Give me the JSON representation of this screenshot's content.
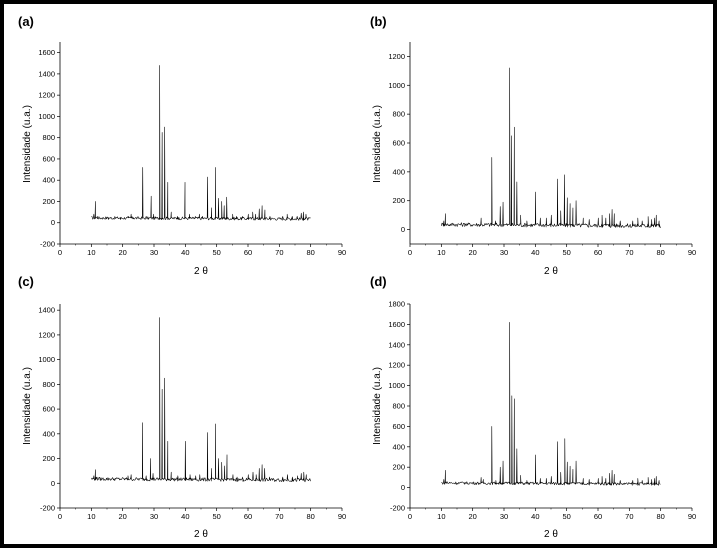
{
  "chart_data": [
    {
      "panel": "(a)",
      "type": "line",
      "xlabel": "2 θ",
      "ylabel": "Intensidade (u.a.)",
      "xlim": [
        0,
        90
      ],
      "ylim": [
        -200,
        1700
      ],
      "xticks": [
        0,
        10,
        20,
        30,
        40,
        50,
        60,
        70,
        80,
        90
      ],
      "yticks": [
        -200,
        0,
        200,
        400,
        600,
        800,
        1000,
        1200,
        1400,
        1600
      ],
      "grid": false,
      "baseline": 40,
      "x_range": [
        10,
        80
      ],
      "peaks": [
        [
          10.8,
          80
        ],
        [
          11.3,
          200
        ],
        [
          11.9,
          60
        ],
        [
          15.5,
          30
        ],
        [
          17.8,
          40
        ],
        [
          19.3,
          30
        ],
        [
          21.8,
          60
        ],
        [
          22.7,
          80
        ],
        [
          23.3,
          50
        ],
        [
          26.4,
          520
        ],
        [
          27.5,
          60
        ],
        [
          29.1,
          250
        ],
        [
          29.8,
          80
        ],
        [
          31.8,
          1480
        ],
        [
          32.6,
          850
        ],
        [
          33.4,
          900
        ],
        [
          34.4,
          380
        ],
        [
          35.5,
          100
        ],
        [
          37.5,
          60
        ],
        [
          39.9,
          380
        ],
        [
          41.3,
          80
        ],
        [
          43.2,
          60
        ],
        [
          44.5,
          80
        ],
        [
          45.5,
          60
        ],
        [
          47.1,
          430
        ],
        [
          48.3,
          140
        ],
        [
          49.6,
          520
        ],
        [
          50.6,
          230
        ],
        [
          51.6,
          200
        ],
        [
          52.4,
          160
        ],
        [
          53.2,
          240
        ],
        [
          55.1,
          80
        ],
        [
          56.4,
          60
        ],
        [
          58.2,
          60
        ],
        [
          60.1,
          80
        ],
        [
          61.5,
          100
        ],
        [
          62.4,
          80
        ],
        [
          63.6,
          130
        ],
        [
          64.5,
          160
        ],
        [
          65.4,
          120
        ],
        [
          67.0,
          60
        ],
        [
          71.1,
          60
        ],
        [
          72.5,
          80
        ],
        [
          74.1,
          60
        ],
        [
          75.7,
          60
        ],
        [
          77.0,
          90
        ],
        [
          77.7,
          100
        ],
        [
          78.5,
          80
        ]
      ]
    },
    {
      "panel": "(b)",
      "type": "line",
      "xlabel": "2 θ",
      "ylabel": "Intensidade (u.a.)",
      "xlim": [
        0,
        90
      ],
      "ylim": [
        -100,
        1300
      ],
      "xticks": [
        0,
        10,
        20,
        30,
        40,
        50,
        60,
        70,
        80,
        90
      ],
      "yticks": [
        0,
        200,
        400,
        600,
        800,
        1000,
        1200
      ],
      "grid": false,
      "baseline": 30,
      "x_range": [
        10,
        80
      ],
      "peaks": [
        [
          10.8,
          60
        ],
        [
          11.3,
          110
        ],
        [
          17.6,
          40
        ],
        [
          22.7,
          80
        ],
        [
          26.1,
          500
        ],
        [
          27.3,
          60
        ],
        [
          28.8,
          160
        ],
        [
          29.7,
          190
        ],
        [
          31.8,
          1120
        ],
        [
          32.4,
          650
        ],
        [
          33.3,
          710
        ],
        [
          34.1,
          330
        ],
        [
          35.3,
          100
        ],
        [
          37.3,
          60
        ],
        [
          40.1,
          260
        ],
        [
          41.6,
          80
        ],
        [
          43.5,
          80
        ],
        [
          45.1,
          100
        ],
        [
          47.1,
          350
        ],
        [
          48.1,
          130
        ],
        [
          49.3,
          380
        ],
        [
          50.2,
          220
        ],
        [
          51.1,
          180
        ],
        [
          52.0,
          150
        ],
        [
          53.0,
          200
        ],
        [
          55.3,
          80
        ],
        [
          57.2,
          70
        ],
        [
          60.1,
          80
        ],
        [
          61.3,
          100
        ],
        [
          62.5,
          80
        ],
        [
          63.7,
          110
        ],
        [
          64.5,
          140
        ],
        [
          65.2,
          110
        ],
        [
          67.1,
          60
        ],
        [
          71.1,
          60
        ],
        [
          72.7,
          80
        ],
        [
          74.1,
          60
        ],
        [
          76.0,
          90
        ],
        [
          77.1,
          70
        ],
        [
          78.0,
          80
        ],
        [
          78.6,
          100
        ],
        [
          79.5,
          60
        ]
      ]
    },
    {
      "panel": "(c)",
      "type": "line",
      "xlabel": "2 θ",
      "ylabel": "Intensidade (u.a.)",
      "xlim": [
        0,
        90
      ],
      "ylim": [
        -200,
        1450
      ],
      "xticks": [
        0,
        10,
        20,
        30,
        40,
        50,
        60,
        70,
        80,
        90
      ],
      "yticks": [
        -200,
        0,
        200,
        400,
        600,
        800,
        1000,
        1200,
        1400
      ],
      "grid": false,
      "baseline": 30,
      "x_range": [
        10,
        80
      ],
      "peaks": [
        [
          10.8,
          60
        ],
        [
          11.3,
          110
        ],
        [
          11.8,
          50
        ],
        [
          15.6,
          30
        ],
        [
          17.8,
          40
        ],
        [
          21.7,
          60
        ],
        [
          22.7,
          70
        ],
        [
          26.3,
          490
        ],
        [
          27.5,
          60
        ],
        [
          28.9,
          200
        ],
        [
          29.7,
          80
        ],
        [
          31.8,
          1340
        ],
        [
          32.6,
          760
        ],
        [
          33.4,
          850
        ],
        [
          34.4,
          340
        ],
        [
          35.5,
          90
        ],
        [
          37.6,
          60
        ],
        [
          40.0,
          340
        ],
        [
          41.5,
          70
        ],
        [
          43.3,
          60
        ],
        [
          44.6,
          70
        ],
        [
          47.1,
          410
        ],
        [
          48.3,
          120
        ],
        [
          49.6,
          480
        ],
        [
          50.6,
          200
        ],
        [
          51.6,
          170
        ],
        [
          52.5,
          140
        ],
        [
          53.3,
          230
        ],
        [
          55.2,
          70
        ],
        [
          56.5,
          50
        ],
        [
          58.3,
          50
        ],
        [
          60.1,
          70
        ],
        [
          61.6,
          90
        ],
        [
          62.6,
          70
        ],
        [
          63.6,
          120
        ],
        [
          64.5,
          150
        ],
        [
          65.3,
          120
        ],
        [
          66.9,
          50
        ],
        [
          71.1,
          50
        ],
        [
          72.6,
          70
        ],
        [
          74.2,
          50
        ],
        [
          75.8,
          60
        ],
        [
          77.0,
          80
        ],
        [
          77.8,
          90
        ],
        [
          78.6,
          70
        ]
      ]
    },
    {
      "panel": "(d)",
      "type": "line",
      "xlabel": "2 θ",
      "ylabel": "Intensidade (u.a.)",
      "xlim": [
        0,
        90
      ],
      "ylim": [
        -200,
        1800
      ],
      "xticks": [
        0,
        10,
        20,
        30,
        40,
        50,
        60,
        70,
        80,
        90
      ],
      "yticks": [
        -200,
        0,
        200,
        400,
        600,
        800,
        1000,
        1200,
        1400,
        1600,
        1800
      ],
      "grid": false,
      "baseline": 40,
      "x_range": [
        10,
        80
      ],
      "peaks": [
        [
          10.8,
          80
        ],
        [
          11.3,
          170
        ],
        [
          11.8,
          60
        ],
        [
          17.6,
          50
        ],
        [
          22.7,
          100
        ],
        [
          23.4,
          80
        ],
        [
          26.1,
          600
        ],
        [
          27.4,
          70
        ],
        [
          28.8,
          200
        ],
        [
          29.7,
          260
        ],
        [
          31.8,
          1620
        ],
        [
          32.5,
          900
        ],
        [
          33.3,
          870
        ],
        [
          34.1,
          380
        ],
        [
          35.3,
          120
        ],
        [
          37.3,
          70
        ],
        [
          40.1,
          320
        ],
        [
          41.6,
          90
        ],
        [
          43.5,
          90
        ],
        [
          45.1,
          110
        ],
        [
          47.1,
          450
        ],
        [
          48.1,
          150
        ],
        [
          49.4,
          480
        ],
        [
          50.2,
          250
        ],
        [
          51.1,
          210
        ],
        [
          52.0,
          180
        ],
        [
          53.0,
          260
        ],
        [
          55.3,
          90
        ],
        [
          57.2,
          80
        ],
        [
          60.1,
          90
        ],
        [
          61.3,
          110
        ],
        [
          62.5,
          90
        ],
        [
          63.7,
          140
        ],
        [
          64.5,
          170
        ],
        [
          65.2,
          130
        ],
        [
          67.1,
          70
        ],
        [
          71.1,
          70
        ],
        [
          72.7,
          90
        ],
        [
          74.1,
          70
        ],
        [
          76.0,
          100
        ],
        [
          77.1,
          80
        ],
        [
          78.0,
          90
        ],
        [
          78.6,
          110
        ],
        [
          79.5,
          70
        ]
      ]
    }
  ]
}
